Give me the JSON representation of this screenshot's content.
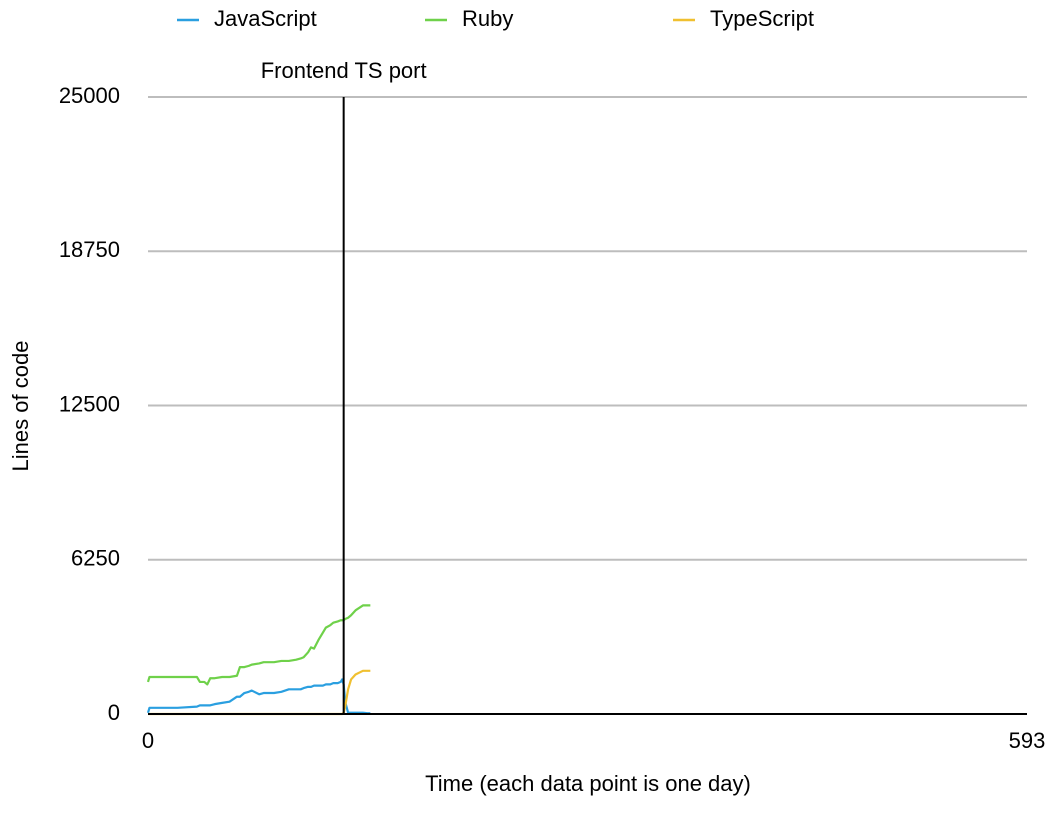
{
  "chart_data": {
    "type": "line",
    "x_label": "Time (each data point is one day)",
    "y_label": "Lines of code",
    "x": [
      0,
      1,
      10,
      20,
      33,
      35,
      38,
      40,
      42,
      45,
      50,
      55,
      60,
      62,
      65,
      68,
      70,
      75,
      78,
      80,
      85,
      90,
      95,
      100,
      103,
      105,
      108,
      110,
      112,
      115,
      118,
      120,
      123,
      125,
      128,
      130,
      131,
      132,
      133,
      135,
      137,
      140,
      145,
      148,
      150
    ],
    "series": [
      {
        "name": "JavaScript",
        "color": "#2a9fe0",
        "values": [
          50,
          250,
          250,
          250,
          300,
          350,
          350,
          350,
          350,
          400,
          450,
          500,
          700,
          700,
          850,
          900,
          950,
          800,
          850,
          850,
          850,
          900,
          1000,
          1000,
          1000,
          1050,
          1100,
          1100,
          1150,
          1150,
          1150,
          1200,
          1200,
          1250,
          1250,
          1300,
          1400,
          1200,
          500,
          50,
          50,
          50,
          50,
          30,
          30
        ]
      },
      {
        "name": "Ruby",
        "color": "#6fd14a",
        "values": [
          1300,
          1500,
          1500,
          1500,
          1500,
          1300,
          1300,
          1200,
          1450,
          1450,
          1500,
          1500,
          1550,
          1900,
          1900,
          1950,
          2000,
          2050,
          2100,
          2100,
          2100,
          2150,
          2150,
          2200,
          2250,
          2300,
          2500,
          2700,
          2650,
          3000,
          3300,
          3500,
          3600,
          3700,
          3750,
          3800,
          3800,
          3800,
          3850,
          3900,
          4000,
          4200,
          4400,
          4400,
          4400
        ]
      },
      {
        "name": "TypeScript",
        "color": "#f0c030",
        "values": [
          0,
          0,
          0,
          0,
          0,
          0,
          0,
          0,
          0,
          0,
          0,
          0,
          0,
          0,
          0,
          0,
          0,
          0,
          0,
          0,
          0,
          0,
          0,
          0,
          0,
          0,
          0,
          0,
          0,
          0,
          0,
          0,
          0,
          0,
          0,
          0,
          0,
          50,
          300,
          1000,
          1400,
          1600,
          1750,
          1750,
          1750
        ]
      }
    ],
    "xlim": [
      0,
      593
    ],
    "xticks": [
      0,
      593
    ],
    "ylim": [
      0,
      25000
    ],
    "yticks": [
      0,
      6250,
      12500,
      18750,
      25000
    ],
    "grid": true,
    "legend": "top",
    "annotations": [
      {
        "text": "Frontend TS port",
        "x": 132
      }
    ]
  }
}
